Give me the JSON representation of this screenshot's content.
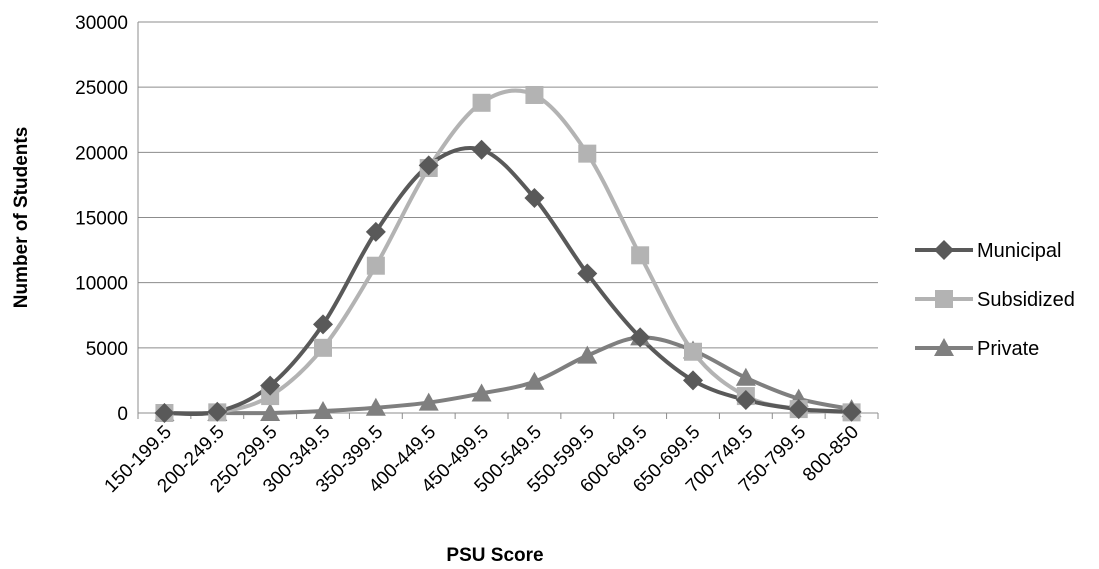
{
  "chart_data": {
    "type": "line",
    "xlabel": "PSU Score",
    "ylabel": "Number of Students",
    "ylim": [
      0,
      30000
    ],
    "yticks": [
      0,
      5000,
      10000,
      15000,
      20000,
      25000,
      30000
    ],
    "grid": "horizontal",
    "smooth": true,
    "legend_position": "right",
    "categories": [
      "150-199.5",
      "200-249.5",
      "250-299.5",
      "300-349.5",
      "350-399.5",
      "400-449.5",
      "450-499.5",
      "500-549.5",
      "550-599.5",
      "600-649.5",
      "650-699.5",
      "700-749.5",
      "750-799.5",
      "800-850"
    ],
    "series": [
      {
        "name": "Municipal",
        "marker": "diamond",
        "color": "#595959",
        "values": [
          0,
          100,
          2100,
          6800,
          13900,
          19000,
          20200,
          16500,
          10700,
          5800,
          2500,
          1000,
          300,
          100
        ]
      },
      {
        "name": "Subsidized",
        "marker": "square",
        "color": "#b3b3b3",
        "values": [
          0,
          50,
          1300,
          5000,
          11300,
          18800,
          23800,
          24400,
          19900,
          12100,
          4700,
          1300,
          300,
          50
        ]
      },
      {
        "name": "Private",
        "marker": "triangle",
        "color": "#7f7f7f",
        "values": [
          0,
          0,
          0,
          150,
          400,
          800,
          1500,
          2400,
          4400,
          5800,
          4800,
          2700,
          1100,
          300
        ]
      }
    ]
  }
}
